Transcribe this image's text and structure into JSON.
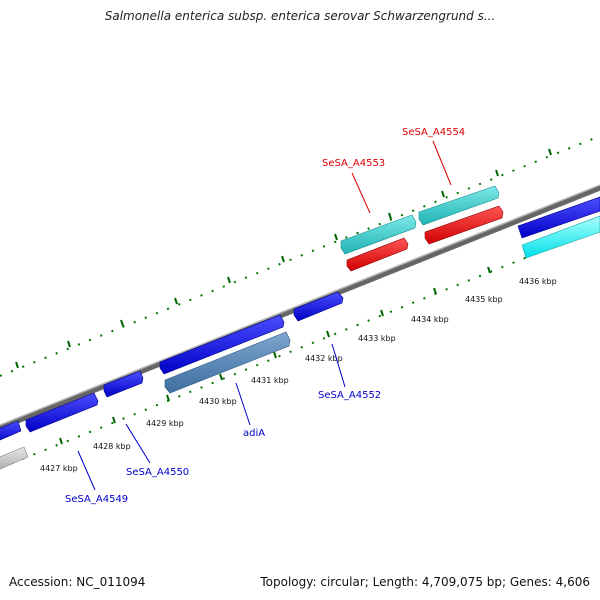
{
  "title": "Salmonella enterica subsp. enterica serovar Schwarzengrund s...",
  "footer": {
    "accession": "Accession: NC_011094",
    "summary": "Topology: circular; Length: 4,709,075 bp; Genes: 4,606"
  },
  "scale_labels": [
    "4427 kbp",
    "4428 kbp",
    "4429 kbp",
    "4430 kbp",
    "4431 kbp",
    "4432 kbp",
    "4433 kbp",
    "4434 kbp",
    "4435 kbp",
    "4436 kbp"
  ],
  "genes": [
    {
      "name": "SeSA_A4549",
      "color": "#0000cc"
    },
    {
      "name": "SeSA_A4550",
      "color": "#0000cc"
    },
    {
      "name": "adiA",
      "color": "#0000cc"
    },
    {
      "name": "SeSA_A4552",
      "color": "#0000cc"
    },
    {
      "name": "SeSA_A4553",
      "color": "#dd0000"
    },
    {
      "name": "SeSA_A4554",
      "color": "#dd0000"
    }
  ],
  "colors": {
    "backbone": "#808080",
    "tick": "#007700",
    "forward_cds": "#0000dd",
    "reverse_cds": "#4a7fb5",
    "cyan_feature": "#33cccc",
    "red_feature": "#ee0000",
    "light_cyan": "#00f0f0",
    "grey_feature": "#c8c8c8"
  }
}
